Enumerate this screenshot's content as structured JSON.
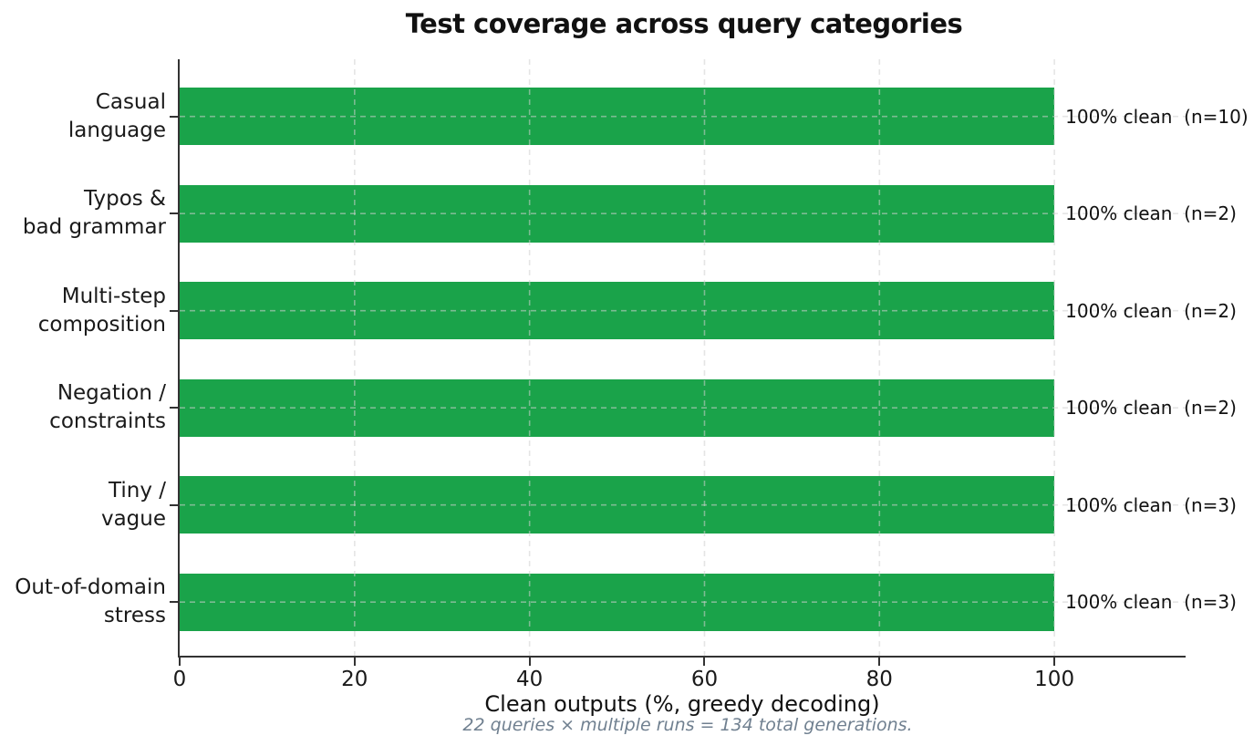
{
  "chart_data": {
    "type": "bar",
    "orientation": "horizontal",
    "title": "Test coverage across query categories",
    "xlabel": "Clean outputs (%, greedy decoding)",
    "footnote": "22 queries × multiple runs = 134 total generations.",
    "categories": [
      "Casual\nlanguage",
      "Typos &\nbad grammar",
      "Multi-step\ncomposition",
      "Negation /\nconstraints",
      "Tiny /\nvague",
      "Out-of-domain\nstress"
    ],
    "values": [
      100,
      100,
      100,
      100,
      100,
      100
    ],
    "bar_labels": [
      "100% clean  (n=10)",
      "100% clean  (n=2)",
      "100% clean  (n=2)",
      "100% clean  (n=2)",
      "100% clean  (n=3)",
      "100% clean  (n=3)"
    ],
    "n_values": [
      10,
      2,
      2,
      2,
      3,
      3
    ],
    "x_ticks": [
      0,
      20,
      40,
      60,
      80,
      100
    ],
    "xlim": [
      0,
      115
    ],
    "grid": {
      "style": "dashed",
      "axes": "both",
      "drawn_over_bars": true
    },
    "legend_position": "none",
    "colors": {
      "bar": "#1aa34a",
      "grid": "#cfcfcf",
      "spine": "#333333",
      "text": "#111111",
      "footnote": "#708090",
      "background": "#ffffff"
    }
  }
}
